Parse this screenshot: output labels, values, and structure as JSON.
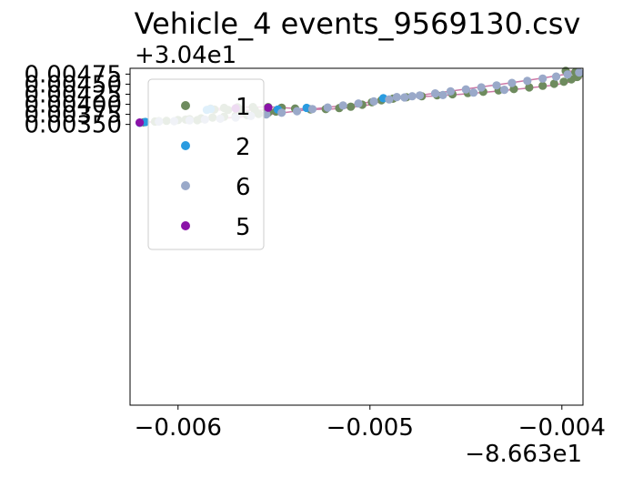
{
  "chart_data": {
    "type": "scatter",
    "title": "Vehicle_4 events_9569130.csv",
    "xlabel": "",
    "ylabel": "",
    "x_offset_label": "−8.663e1",
    "y_offset_label": "+3.04e1",
    "xlim": [
      -0.00625,
      -0.00389
    ],
    "ylim": [
      -0.00348,
      0.004895
    ],
    "x_ticks": [
      {
        "value": -0.006,
        "label": "−0.006"
      },
      {
        "value": -0.005,
        "label": "−0.005"
      },
      {
        "value": -0.004,
        "label": "−0.004"
      }
    ],
    "y_ticks": [
      {
        "value": 0.0035,
        "label": "0.00350"
      },
      {
        "value": 0.00375,
        "label": "0.00375"
      },
      {
        "value": 0.004,
        "label": "0.00400"
      },
      {
        "value": 0.00425,
        "label": "0.00425"
      },
      {
        "value": 0.0045,
        "label": "0.00450"
      },
      {
        "value": 0.00475,
        "label": "0.00475"
      }
    ],
    "grid": false,
    "legend": "upper-left",
    "legend_order": [
      "1",
      "2",
      "6",
      "5"
    ],
    "track_color": "#cc79a7",
    "track": [
      [
        -0.0062,
        0.00354
      ],
      [
        -0.0061,
        0.00357
      ],
      [
        -0.006,
        0.0036
      ],
      [
        -0.00585,
        0.00364
      ],
      [
        -0.0057,
        0.00368
      ],
      [
        -0.0056,
        0.00372
      ],
      [
        -0.0055,
        0.00377
      ],
      [
        -0.00545,
        0.00382
      ],
      [
        -0.0055,
        0.00386
      ],
      [
        -0.00565,
        0.00385
      ],
      [
        -0.0058,
        0.00386
      ],
      [
        -0.00585,
        0.00387
      ],
      [
        -0.00578,
        0.0039
      ],
      [
        -0.00565,
        0.00393
      ],
      [
        -0.0055,
        0.00393
      ],
      [
        -0.0054,
        0.0039
      ],
      [
        -0.0053,
        0.00387
      ],
      [
        -0.0052,
        0.00388
      ],
      [
        -0.0051,
        0.00392
      ],
      [
        -0.005,
        0.00399
      ],
      [
        -0.00495,
        0.00406
      ],
      [
        -0.0049,
        0.00412
      ],
      [
        -0.0048,
        0.00417
      ],
      [
        -0.00465,
        0.00421
      ],
      [
        -0.0045,
        0.00426
      ],
      [
        -0.00435,
        0.00432
      ],
      [
        -0.0042,
        0.00439
      ],
      [
        -0.00405,
        0.00447
      ],
      [
        -0.00395,
        0.00456
      ],
      [
        -0.0039,
        0.00465
      ],
      [
        -0.00392,
        0.00474
      ],
      [
        -0.00398,
        0.00483
      ],
      [
        -0.0039,
        0.00481
      ],
      [
        -0.004,
        0.00473
      ],
      [
        -0.0041,
        0.00465
      ],
      [
        -0.0043,
        0.00451
      ],
      [
        -0.0045,
        0.00438
      ],
      [
        -0.0047,
        0.00425
      ],
      [
        -0.0049,
        0.00412
      ],
      [
        -0.0051,
        0.00399
      ],
      [
        -0.0053,
        0.00388
      ],
      [
        -0.0055,
        0.00376
      ],
      [
        -0.0057,
        0.00367
      ],
      [
        -0.0059,
        0.00361
      ],
      [
        -0.0061,
        0.00357
      ],
      [
        -0.0062,
        0.00355
      ]
    ],
    "series": [
      {
        "name": "1",
        "color": "#6e8b5e",
        "points": [
          [
            -0.00618,
            0.00355
          ],
          [
            -0.00612,
            0.00357
          ],
          [
            -0.00606,
            0.00359
          ],
          [
            -0.006,
            0.00361
          ],
          [
            -0.00594,
            0.00363
          ],
          [
            -0.00588,
            0.00365
          ],
          [
            -0.00582,
            0.00367
          ],
          [
            -0.00576,
            0.00369
          ],
          [
            -0.0057,
            0.00371
          ],
          [
            -0.00564,
            0.00373
          ],
          [
            -0.00558,
            0.00376
          ],
          [
            -0.00553,
            0.00379
          ],
          [
            -0.00549,
            0.00382
          ],
          [
            -0.00553,
            0.00385
          ],
          [
            -0.0056,
            0.003855
          ],
          [
            -0.00567,
            0.003855
          ],
          [
            -0.00574,
            0.00386
          ],
          [
            -0.00581,
            0.00387
          ],
          [
            -0.00583,
            0.00389
          ],
          [
            -0.00576,
            0.00391
          ],
          [
            -0.00569,
            0.003925
          ],
          [
            -0.00561,
            0.00393
          ],
          [
            -0.00553,
            0.00393
          ],
          [
            -0.00546,
            0.003915
          ],
          [
            -0.00539,
            0.003895
          ],
          [
            -0.00531,
            0.003875
          ],
          [
            -0.00523,
            0.00388
          ],
          [
            -0.00516,
            0.003905
          ],
          [
            -0.0051,
            0.00394
          ],
          [
            -0.00504,
            0.00399
          ],
          [
            -0.00499,
            0.00405
          ],
          [
            -0.00494,
            0.0041
          ],
          [
            -0.00488,
            0.00414
          ],
          [
            -0.00481,
            0.004175
          ],
          [
            -0.00473,
            0.0042
          ],
          [
            -0.00465,
            0.004225
          ],
          [
            -0.00457,
            0.00425
          ],
          [
            -0.00449,
            0.00428
          ],
          [
            -0.00441,
            0.00431
          ],
          [
            -0.00433,
            0.004345
          ],
          [
            -0.00425,
            0.00438
          ],
          [
            -0.00417,
            0.00442
          ],
          [
            -0.0041,
            0.00446
          ],
          [
            -0.00404,
            0.00451
          ],
          [
            -0.00399,
            0.00456
          ],
          [
            -0.00395,
            0.00462
          ],
          [
            -0.00392,
            0.00468
          ],
          [
            -0.00391,
            0.00474
          ],
          [
            -0.00393,
            0.0048
          ],
          [
            -0.00398,
            0.00483
          ],
          [
            -0.0061,
            0.00358
          ],
          [
            -0.00596,
            0.00362
          ],
          [
            -0.0059,
            0.003605
          ]
        ]
      },
      {
        "name": "2",
        "color": "#2a9be0",
        "points": [
          [
            -0.0062,
            0.00354
          ],
          [
            -0.00617,
            0.00356
          ],
          [
            -0.00585,
            0.00386
          ],
          [
            -0.00583,
            0.00388
          ],
          [
            -0.00548,
            0.00387
          ],
          [
            -0.00533,
            0.00391
          ],
          [
            -0.00493,
            0.00415
          ]
        ]
      },
      {
        "name": "6",
        "color": "#9aa9c9",
        "points": [
          [
            -0.00391,
            0.00479
          ],
          [
            -0.00397,
            0.00474
          ],
          [
            -0.00403,
            0.00469
          ],
          [
            -0.0041,
            0.00464
          ],
          [
            -0.00418,
            0.00458
          ],
          [
            -0.00426,
            0.00453
          ],
          [
            -0.00434,
            0.00447
          ],
          [
            -0.00442,
            0.00442
          ],
          [
            -0.0045,
            0.00437
          ],
          [
            -0.00458,
            0.00432
          ],
          [
            -0.00466,
            0.00427
          ],
          [
            -0.00474,
            0.00422
          ],
          [
            -0.00482,
            0.00417
          ],
          [
            -0.0049,
            0.00412
          ],
          [
            -0.00498,
            0.00407
          ],
          [
            -0.00506,
            0.00402
          ],
          [
            -0.00514,
            0.00397
          ],
          [
            -0.00522,
            0.00392
          ],
          [
            -0.0053,
            0.00388
          ],
          [
            -0.00538,
            0.00383
          ],
          [
            -0.00546,
            0.00379
          ],
          [
            -0.00554,
            0.00375
          ],
          [
            -0.00562,
            0.00371
          ],
          [
            -0.0057,
            0.00367
          ],
          [
            -0.00578,
            0.00364
          ],
          [
            -0.00586,
            0.00362
          ],
          [
            -0.00594,
            0.0036
          ],
          [
            -0.00602,
            0.00358
          ],
          [
            -0.0061,
            0.00357
          ],
          [
            -0.00478,
            0.0042
          ],
          [
            -0.00486,
            0.00418
          ],
          [
            -0.00462,
            0.00423
          ],
          [
            -0.00446,
            0.00429
          ],
          [
            -0.0043,
            0.00436
          ]
        ]
      },
      {
        "name": "5",
        "color": "#8b13a8",
        "points": [
          [
            -0.0062,
            0.003545
          ],
          [
            -0.0057,
            0.0039
          ],
          [
            -0.00553,
            0.003915
          ]
        ]
      }
    ]
  }
}
